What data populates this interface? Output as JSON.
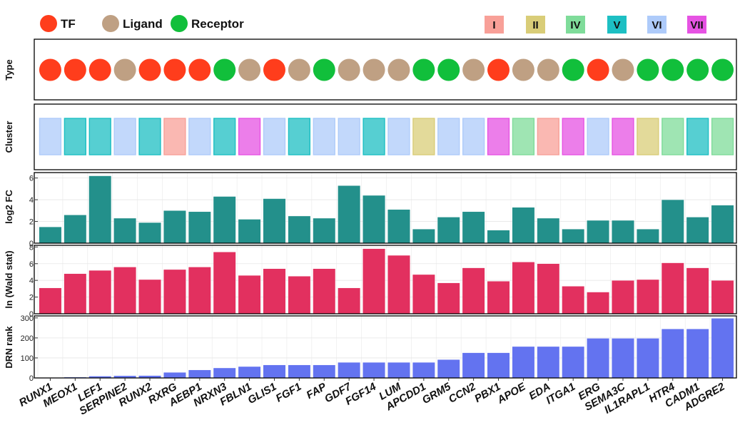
{
  "legend": {
    "type_items": [
      {
        "label": "TF",
        "color": "#FF3D1C"
      },
      {
        "label": "Ligand",
        "color": "#BFA083"
      },
      {
        "label": "Receptor",
        "color": "#11BF3B"
      }
    ],
    "cluster_items": [
      {
        "label": "I",
        "color": "#F8A098"
      },
      {
        "label": "II",
        "color": "#D9CD78"
      },
      {
        "label": "IV",
        "color": "#7FDC9A"
      },
      {
        "label": "V",
        "color": "#1DBFC3"
      },
      {
        "label": "VI",
        "color": "#AECBFA"
      },
      {
        "label": "VII",
        "color": "#E653E3"
      }
    ]
  },
  "panels": {
    "type_label": "Type",
    "cluster_label": "Cluster",
    "log2fc_label": "log2 FC",
    "wald_label": "ln (Wald stat)",
    "drn_label": "DRN rank"
  },
  "chart_data": {
    "type": "bar",
    "categories": [
      "RUNX1",
      "MEOX1",
      "LEF1",
      "SERPINE2",
      "RUNX2",
      "RXRG",
      "AEBP1",
      "NRXN3",
      "FBLN1",
      "GLIS1",
      "FGF1",
      "FAP",
      "GDF7",
      "FGF14",
      "LUM",
      "APCDD1",
      "GRM5",
      "CCN2",
      "PBX1",
      "APOE",
      "EDA",
      "ITGA1",
      "ERG",
      "SEMA3C",
      "IL1RAPL1",
      "HTR4",
      "CADM1",
      "ADGRE2"
    ],
    "gene_type": [
      "TF",
      "TF",
      "TF",
      "Ligand",
      "TF",
      "TF",
      "TF",
      "Receptor",
      "Ligand",
      "TF",
      "Ligand",
      "Receptor",
      "Ligand",
      "Ligand",
      "Ligand",
      "Receptor",
      "Receptor",
      "Ligand",
      "TF",
      "Ligand",
      "Ligand",
      "Receptor",
      "TF",
      "Ligand",
      "Receptor",
      "Receptor",
      "Receptor",
      "Receptor"
    ],
    "cluster": [
      "VI",
      "V",
      "V",
      "VI",
      "V",
      "I",
      "VI",
      "V",
      "VII",
      "VI",
      "V",
      "VI",
      "VI",
      "V",
      "VI",
      "II",
      "VI",
      "VI",
      "VII",
      "IV",
      "I",
      "VII",
      "VI",
      "VII",
      "II",
      "IV",
      "V",
      "IV"
    ],
    "series": [
      {
        "name": "log2 FC",
        "color": "#23908B",
        "ylim": [
          0,
          6.5
        ],
        "ticks": [
          0,
          2,
          4,
          6
        ],
        "values": [
          1.5,
          2.6,
          6.2,
          2.3,
          1.9,
          3.0,
          2.9,
          4.3,
          2.2,
          4.1,
          2.5,
          2.3,
          5.3,
          4.4,
          3.1,
          1.3,
          2.4,
          2.9,
          1.2,
          3.3,
          2.3,
          1.3,
          2.1,
          2.1,
          1.3,
          4.0,
          2.4,
          3.5
        ]
      },
      {
        "name": "ln (Wald stat)",
        "color": "#E2305F",
        "ylim": [
          0,
          8.2
        ],
        "ticks": [
          0,
          2,
          4,
          6,
          8
        ],
        "values": [
          3.1,
          4.8,
          5.2,
          5.6,
          4.1,
          5.3,
          5.6,
          7.4,
          4.6,
          5.4,
          4.5,
          5.4,
          3.1,
          7.8,
          7.0,
          4.7,
          3.7,
          5.5,
          3.9,
          6.2,
          6.0,
          3.3,
          2.6,
          4.0,
          4.1,
          6.1,
          5.5,
          4.0
        ]
      },
      {
        "name": "DRN rank",
        "color": "#6373F0",
        "ylim": [
          0,
          310
        ],
        "ticks": [
          0,
          100,
          200,
          300
        ],
        "values": [
          1,
          4,
          9,
          11,
          12,
          28,
          40,
          50,
          57,
          65,
          65,
          65,
          78,
          78,
          78,
          78,
          92,
          126,
          126,
          157,
          157,
          157,
          198,
          198,
          198,
          245,
          245,
          298
        ]
      }
    ],
    "grid": true
  }
}
